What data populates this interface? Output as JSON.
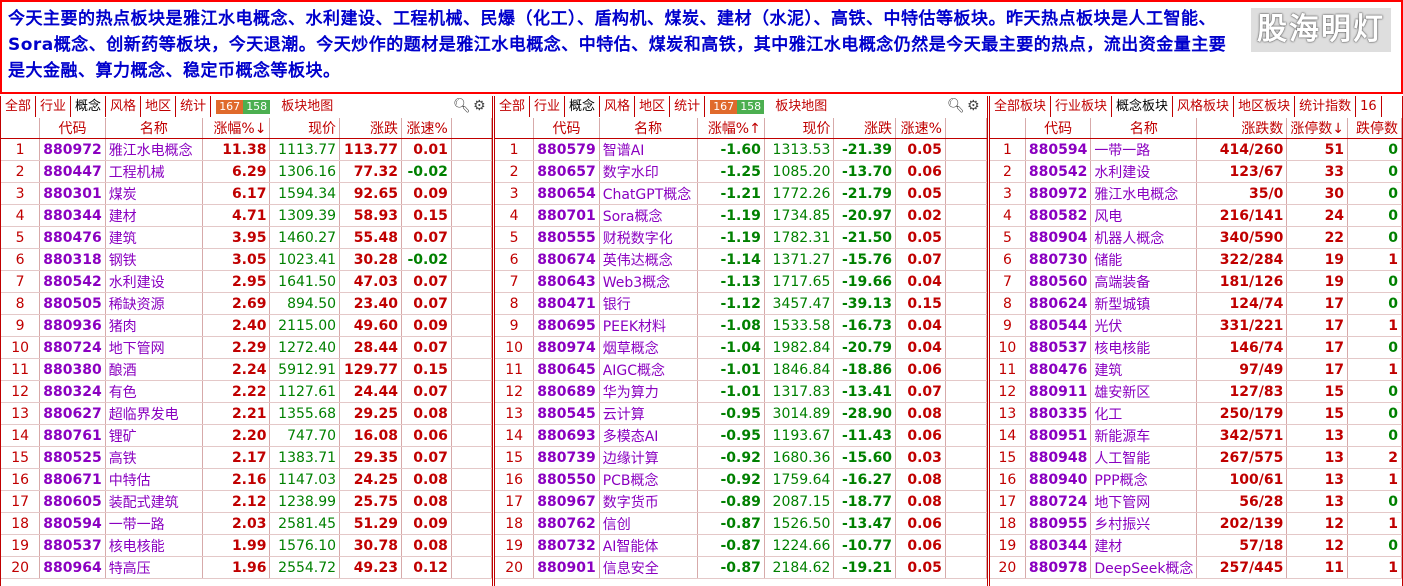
{
  "notice": {
    "text": "今天主要的热点板块是雅江水电概念、水利建设、工程机械、民爆（化工）、盾构机、煤炭、建材（水泥）、高铁、中特估等板块。昨天热点板块是人工智能、Sora概念、创新药等板块，今天退潮。今天炒作的题材是雅江水电概念、中特估、煤炭和高铁，其中雅江水电概念仍然是今天最主要的热点，流出资金量主要是大金融、算力概念、稳定币概念等板块。",
    "logo": "股海明灯"
  },
  "panel1": {
    "tabs": [
      "全部",
      "行业",
      "概念",
      "风格",
      "地区",
      "统计"
    ],
    "selected_tab": 2,
    "up_count": "167",
    "down_count": "158",
    "map_label": "板块地图",
    "headers": [
      "",
      "代码",
      "名称",
      "涨幅%↓",
      "现价",
      "涨跌",
      "涨速%"
    ],
    "rows": [
      [
        "1",
        "880972",
        "雅江水电概念",
        "11.38",
        "1113.77",
        "113.77",
        "0.01"
      ],
      [
        "2",
        "880447",
        "工程机械",
        "6.29",
        "1306.16",
        "77.32",
        "-0.02"
      ],
      [
        "3",
        "880301",
        "煤炭",
        "6.17",
        "1594.34",
        "92.65",
        "0.09"
      ],
      [
        "4",
        "880344",
        "建材",
        "4.71",
        "1309.39",
        "58.93",
        "0.15"
      ],
      [
        "5",
        "880476",
        "建筑",
        "3.95",
        "1460.27",
        "55.48",
        "0.07"
      ],
      [
        "6",
        "880318",
        "钢铁",
        "3.05",
        "1023.41",
        "30.28",
        "-0.02"
      ],
      [
        "7",
        "880542",
        "水利建设",
        "2.95",
        "1641.50",
        "47.03",
        "0.07"
      ],
      [
        "8",
        "880505",
        "稀缺资源",
        "2.69",
        "894.50",
        "23.40",
        "0.07"
      ],
      [
        "9",
        "880936",
        "猪肉",
        "2.40",
        "2115.00",
        "49.60",
        "0.09"
      ],
      [
        "10",
        "880724",
        "地下管网",
        "2.29",
        "1272.40",
        "28.44",
        "0.07"
      ],
      [
        "11",
        "880380",
        "酿酒",
        "2.24",
        "5912.91",
        "129.77",
        "0.15"
      ],
      [
        "12",
        "880324",
        "有色",
        "2.22",
        "1127.61",
        "24.44",
        "0.07"
      ],
      [
        "13",
        "880627",
        "超临界发电",
        "2.21",
        "1355.68",
        "29.25",
        "0.08"
      ],
      [
        "14",
        "880761",
        "锂矿",
        "2.20",
        "747.70",
        "16.08",
        "0.06"
      ],
      [
        "15",
        "880525",
        "高铁",
        "2.17",
        "1383.71",
        "29.35",
        "0.07"
      ],
      [
        "16",
        "880671",
        "中特估",
        "2.16",
        "1147.03",
        "24.25",
        "0.08"
      ],
      [
        "17",
        "880605",
        "装配式建筑",
        "2.12",
        "1238.99",
        "25.75",
        "0.08"
      ],
      [
        "18",
        "880594",
        "一带一路",
        "2.03",
        "2581.45",
        "51.29",
        "0.09"
      ],
      [
        "19",
        "880537",
        "核电核能",
        "1.99",
        "1576.10",
        "30.78",
        "0.08"
      ],
      [
        "20",
        "880964",
        "特高压",
        "1.96",
        "2554.72",
        "49.23",
        "0.12"
      ]
    ]
  },
  "panel2": {
    "tabs": [
      "全部",
      "行业",
      "概念",
      "风格",
      "地区",
      "统计"
    ],
    "selected_tab": 2,
    "up_count": "167",
    "down_count": "158",
    "map_label": "板块地图",
    "headers": [
      "",
      "代码",
      "名称",
      "涨幅%↑",
      "现价",
      "涨跌",
      "涨速%"
    ],
    "rows": [
      [
        "1",
        "880579",
        "智谱AI",
        "-1.60",
        "1313.53",
        "-21.39",
        "0.05"
      ],
      [
        "2",
        "880657",
        "数字水印",
        "-1.25",
        "1085.20",
        "-13.70",
        "0.06"
      ],
      [
        "3",
        "880654",
        "ChatGPT概念",
        "-1.21",
        "1772.26",
        "-21.79",
        "0.05"
      ],
      [
        "4",
        "880701",
        "Sora概念",
        "-1.19",
        "1734.85",
        "-20.97",
        "0.02"
      ],
      [
        "5",
        "880555",
        "财税数字化",
        "-1.19",
        "1782.31",
        "-21.50",
        "0.05"
      ],
      [
        "6",
        "880674",
        "英伟达概念",
        "-1.14",
        "1371.27",
        "-15.76",
        "0.07"
      ],
      [
        "7",
        "880643",
        "Web3概念",
        "-1.13",
        "1717.65",
        "-19.66",
        "0.04"
      ],
      [
        "8",
        "880471",
        "银行",
        "-1.12",
        "3457.47",
        "-39.13",
        "0.15"
      ],
      [
        "9",
        "880695",
        "PEEK材料",
        "-1.08",
        "1533.58",
        "-16.73",
        "0.04"
      ],
      [
        "10",
        "880974",
        "烟草概念",
        "-1.04",
        "1982.84",
        "-20.79",
        "0.04"
      ],
      [
        "11",
        "880645",
        "AIGC概念",
        "-1.01",
        "1846.84",
        "-18.86",
        "0.06"
      ],
      [
        "12",
        "880689",
        "华为算力",
        "-1.01",
        "1317.83",
        "-13.41",
        "0.07"
      ],
      [
        "13",
        "880545",
        "云计算",
        "-0.95",
        "3014.89",
        "-28.90",
        "0.08"
      ],
      [
        "14",
        "880693",
        "多模态AI",
        "-0.95",
        "1193.67",
        "-11.43",
        "0.06"
      ],
      [
        "15",
        "880739",
        "边缘计算",
        "-0.92",
        "1680.36",
        "-15.60",
        "0.03"
      ],
      [
        "16",
        "880550",
        "PCB概念",
        "-0.92",
        "1759.64",
        "-16.27",
        "0.08"
      ],
      [
        "17",
        "880967",
        "数字货币",
        "-0.89",
        "2087.15",
        "-18.77",
        "0.08"
      ],
      [
        "18",
        "880762",
        "信创",
        "-0.87",
        "1526.50",
        "-13.47",
        "0.06"
      ],
      [
        "19",
        "880732",
        "AI智能体",
        "-0.87",
        "1224.66",
        "-10.77",
        "0.06"
      ],
      [
        "20",
        "880901",
        "信息安全",
        "-0.87",
        "2184.62",
        "-19.21",
        "0.05"
      ]
    ]
  },
  "panel3": {
    "tabs": [
      "全部板块",
      "行业板块",
      "概念板块",
      "风格板块",
      "地区板块",
      "统计指数",
      "16"
    ],
    "selected_tab": 2,
    "headers": [
      "",
      "代码",
      "名称",
      "涨跌数",
      "涨停数↓",
      "跌停数"
    ],
    "rows": [
      [
        "1",
        "880594",
        "一带一路",
        "414/260",
        "51",
        "0"
      ],
      [
        "2",
        "880542",
        "水利建设",
        "123/67",
        "33",
        "0"
      ],
      [
        "3",
        "880972",
        "雅江水电概念",
        "35/0",
        "30",
        "0"
      ],
      [
        "4",
        "880582",
        "风电",
        "216/141",
        "24",
        "0"
      ],
      [
        "5",
        "880904",
        "机器人概念",
        "340/590",
        "22",
        "0"
      ],
      [
        "6",
        "880730",
        "储能",
        "322/284",
        "19",
        "1"
      ],
      [
        "7",
        "880560",
        "高端装备",
        "181/126",
        "19",
        "0"
      ],
      [
        "8",
        "880624",
        "新型城镇",
        "124/74",
        "17",
        "0"
      ],
      [
        "9",
        "880544",
        "光伏",
        "331/221",
        "17",
        "1"
      ],
      [
        "10",
        "880537",
        "核电核能",
        "146/74",
        "17",
        "0"
      ],
      [
        "11",
        "880476",
        "建筑",
        "97/49",
        "17",
        "1"
      ],
      [
        "12",
        "880911",
        "雄安新区",
        "127/83",
        "15",
        "0"
      ],
      [
        "13",
        "880335",
        "化工",
        "250/179",
        "15",
        "0"
      ],
      [
        "14",
        "880951",
        "新能源车",
        "342/571",
        "13",
        "0"
      ],
      [
        "15",
        "880948",
        "人工智能",
        "267/575",
        "13",
        "2"
      ],
      [
        "16",
        "880940",
        "PPP概念",
        "100/61",
        "13",
        "1"
      ],
      [
        "17",
        "880724",
        "地下管网",
        "56/28",
        "13",
        "0"
      ],
      [
        "18",
        "880955",
        "乡村振兴",
        "202/139",
        "12",
        "1"
      ],
      [
        "19",
        "880344",
        "建材",
        "57/18",
        "12",
        "0"
      ],
      [
        "20",
        "880978",
        "DeepSeek概念",
        "257/445",
        "11",
        "1"
      ]
    ]
  }
}
